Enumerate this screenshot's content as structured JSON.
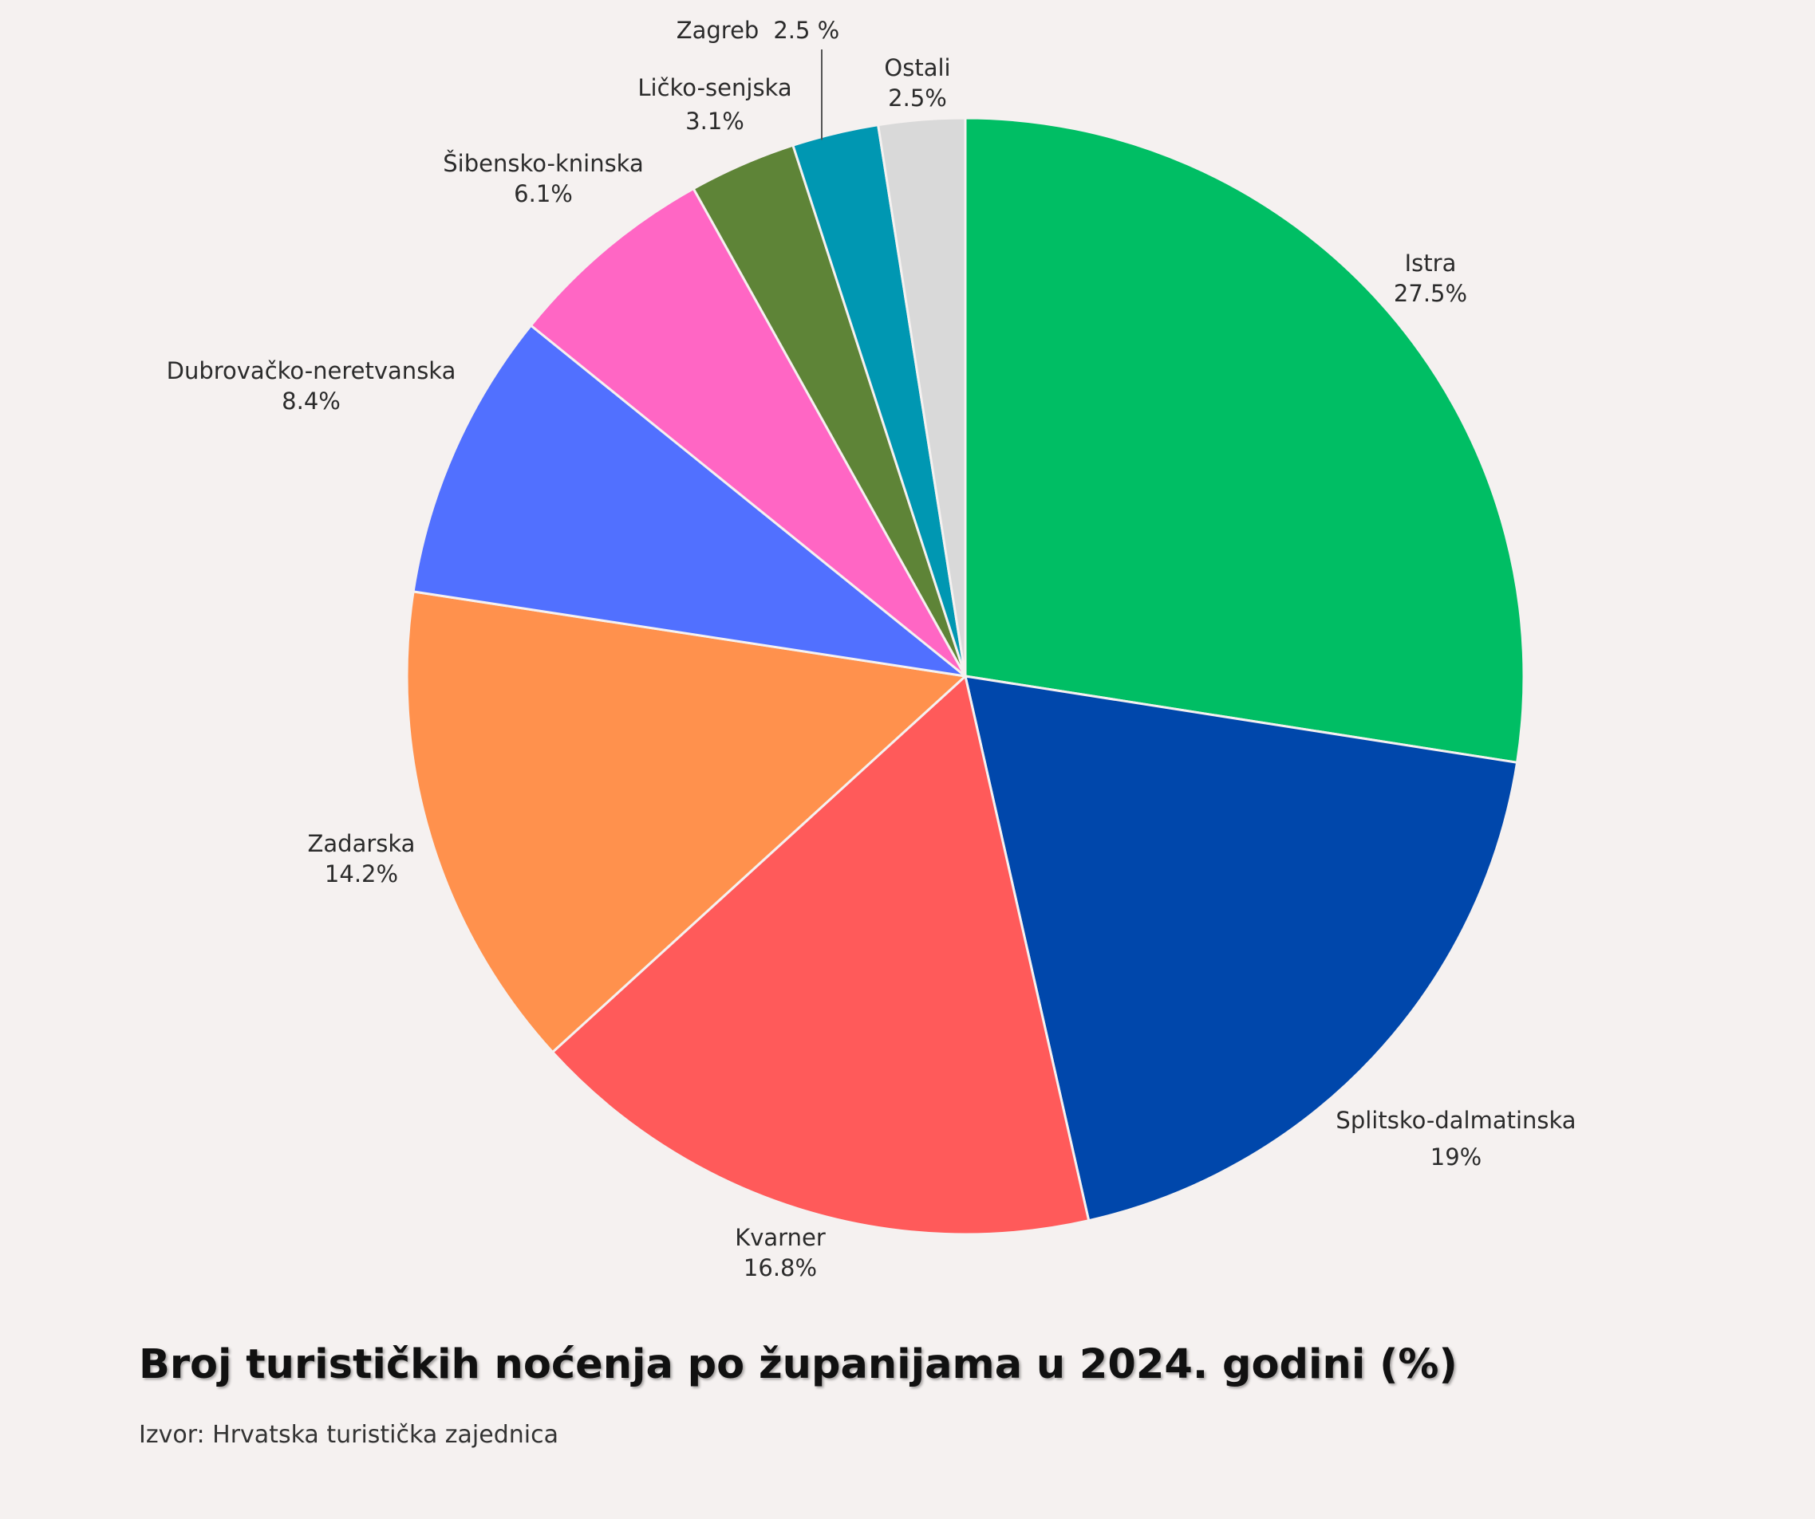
{
  "chart_data": {
    "type": "pie",
    "title": "Broj turističkih noćenja po županijama u 2024. godini (%)",
    "source": "Izvor: Hrvatska turistička zajednica",
    "slices": [
      {
        "name": "Istra",
        "value": 27.5,
        "label": "27.5%",
        "color": "#00be64"
      },
      {
        "name": "Splitsko-dalmatinska",
        "value": 19,
        "label": "19%",
        "color": "#0047ab"
      },
      {
        "name": "Kvarner",
        "value": 16.8,
        "label": "16.8%",
        "color": "#ff5a5a"
      },
      {
        "name": "Zadarska",
        "value": 14.2,
        "label": "14.2%",
        "color": "#ff914d"
      },
      {
        "name": "Dubrovačko-neretvanska",
        "value": 8.4,
        "label": "8.4%",
        "color": "#5170ff"
      },
      {
        "name": "Šibensko-kninska",
        "value": 6.1,
        "label": "6.1%",
        "color": "#ff66c4"
      },
      {
        "name": "Ličko-senjska",
        "value": 3.1,
        "label": "3.1%",
        "color": "#5e8437"
      },
      {
        "name": "Zagreb",
        "value": 2.5,
        "label": "2.5 %",
        "color": "#0097b2"
      },
      {
        "name": "Ostali",
        "value": 2.5,
        "label": "2.5%",
        "color": "#d9d9d9"
      }
    ]
  }
}
